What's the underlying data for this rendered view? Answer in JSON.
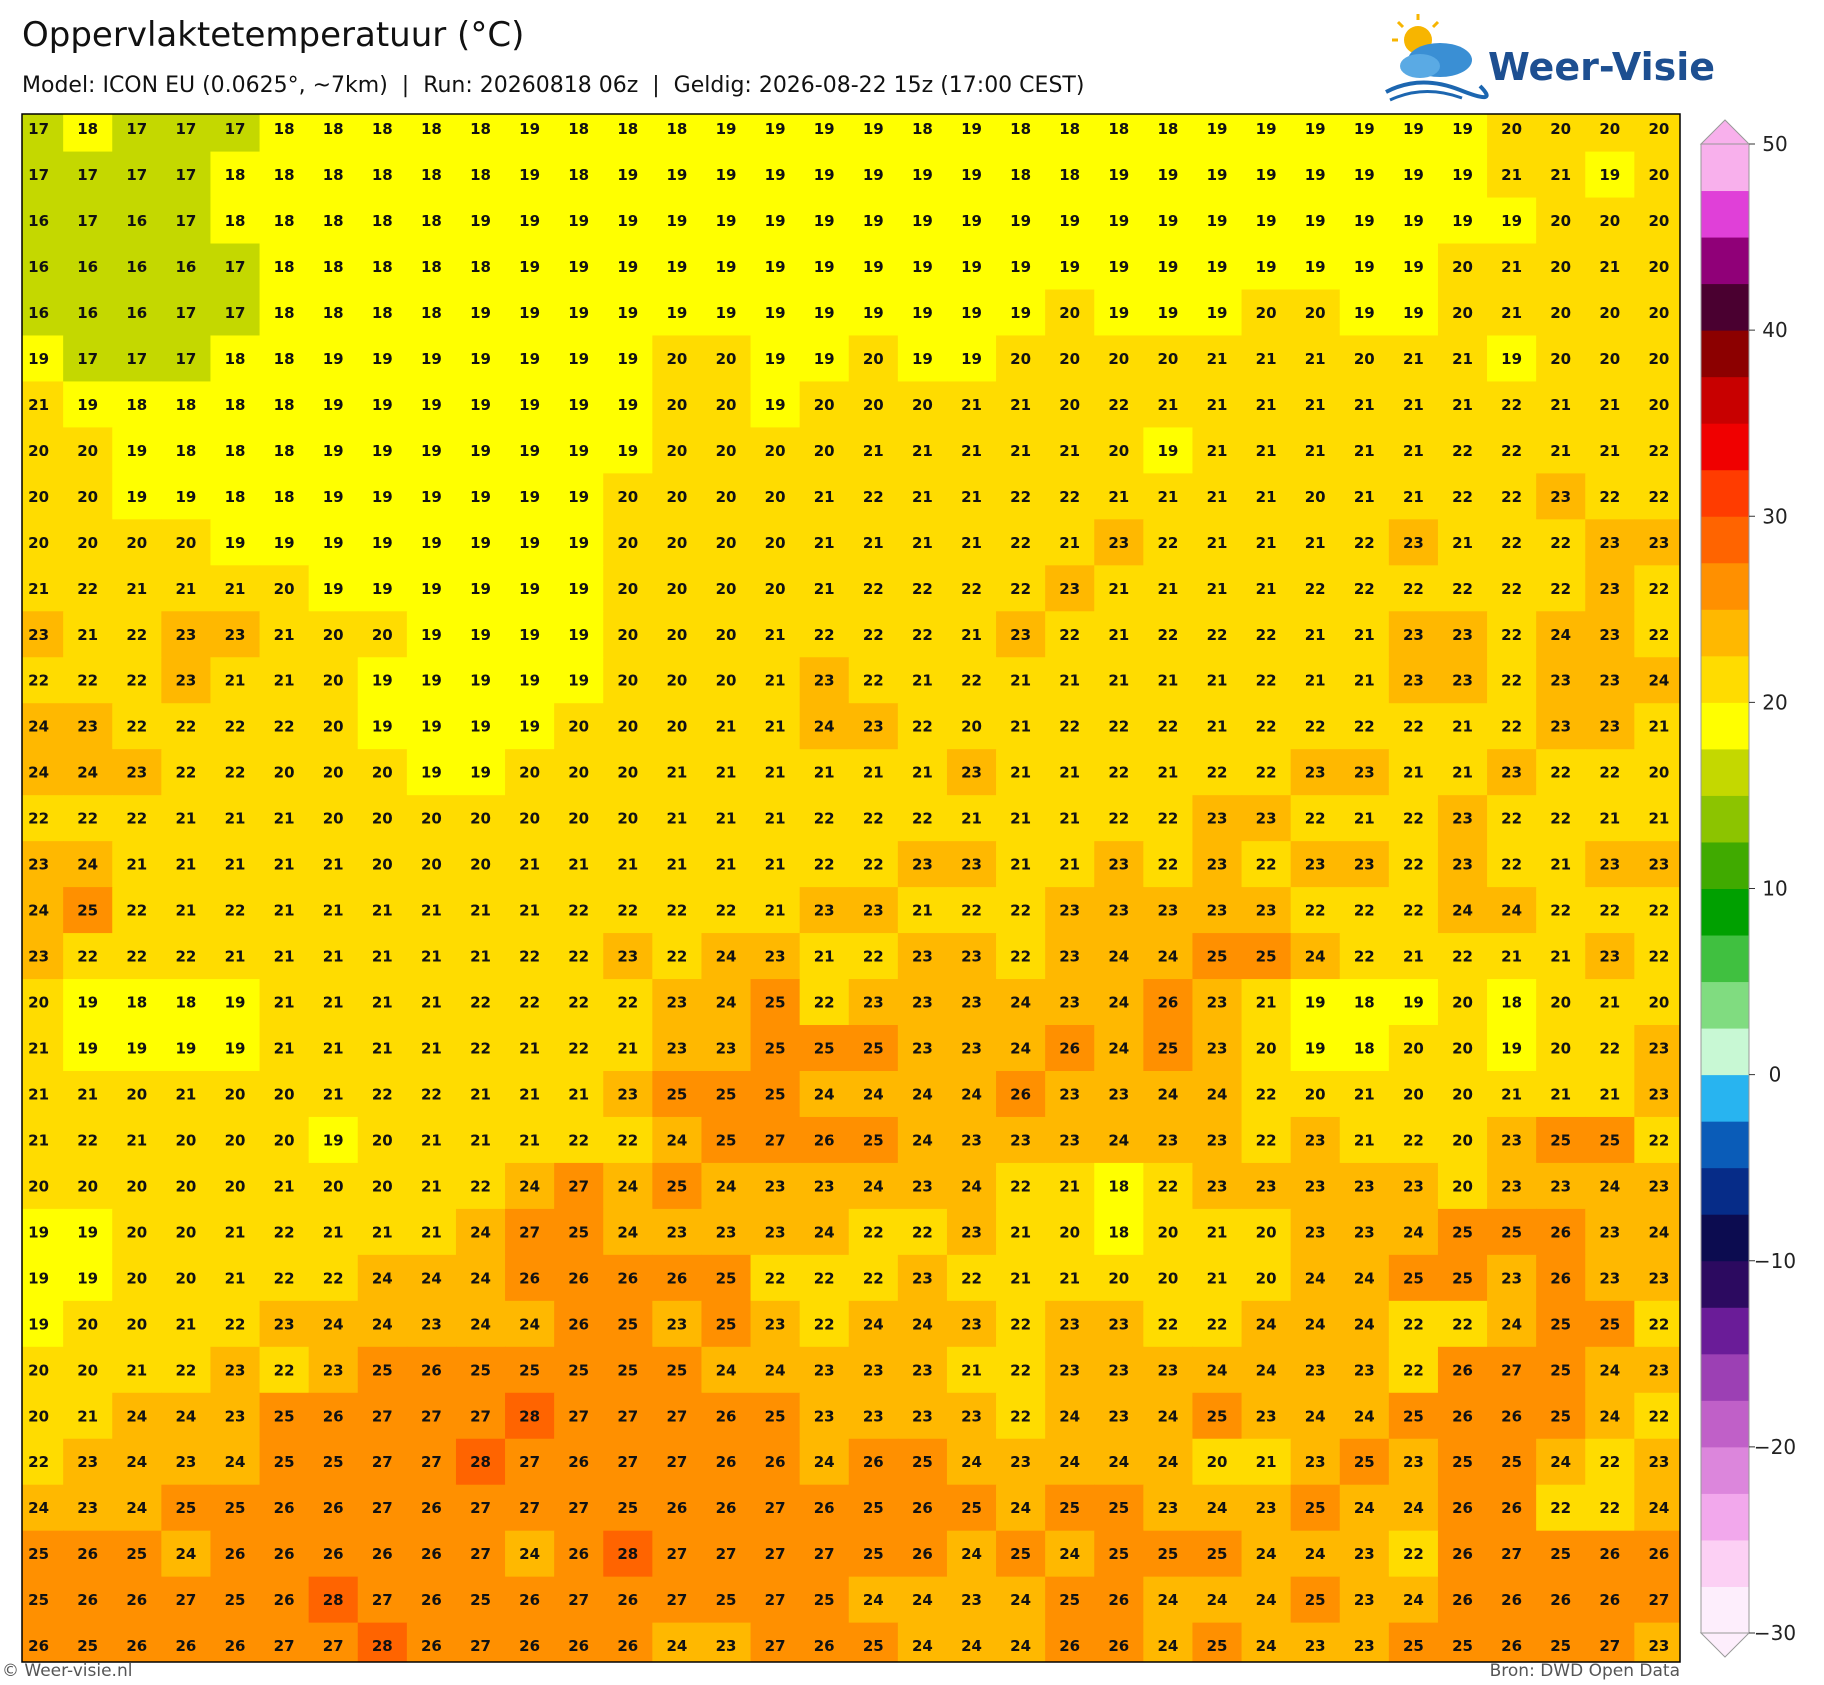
{
  "header": {
    "title": "Oppervlaktetemperatuur (°C)",
    "subtitle": "Model: ICON EU (0.0625°, ~7km)  |  Run: 20260818 06z  |  Geldig: 2026-08-22 15z (17:00 CEST)"
  },
  "logo": "Weer-Visie",
  "map": {
    "values": [
      [
        17,
        18,
        17,
        17,
        17,
        18,
        18,
        18,
        18,
        18,
        19,
        18,
        18,
        18,
        19,
        19,
        19,
        19,
        18,
        19,
        18,
        18,
        18,
        18,
        19,
        19,
        19,
        19,
        19,
        19,
        20,
        20,
        20,
        20
      ],
      [
        17,
        17,
        17,
        17,
        18,
        18,
        18,
        18,
        18,
        18,
        19,
        18,
        19,
        19,
        19,
        19,
        19,
        19,
        19,
        19,
        18,
        18,
        19,
        19,
        19,
        19,
        19,
        19,
        19,
        19,
        21,
        21,
        19,
        20
      ],
      [
        16,
        17,
        16,
        17,
        18,
        18,
        18,
        18,
        18,
        19,
        19,
        19,
        19,
        19,
        19,
        19,
        19,
        19,
        19,
        19,
        19,
        19,
        19,
        19,
        19,
        19,
        19,
        19,
        19,
        19,
        19,
        20,
        20,
        20
      ],
      [
        16,
        16,
        16,
        16,
        17,
        18,
        18,
        18,
        18,
        18,
        19,
        19,
        19,
        19,
        19,
        19,
        19,
        19,
        19,
        19,
        19,
        19,
        19,
        19,
        19,
        19,
        19,
        19,
        19,
        20,
        21,
        20,
        21,
        20
      ],
      [
        16,
        16,
        16,
        17,
        17,
        18,
        18,
        18,
        18,
        19,
        19,
        19,
        19,
        19,
        19,
        19,
        19,
        19,
        19,
        19,
        19,
        20,
        19,
        19,
        19,
        20,
        20,
        19,
        19,
        20,
        21,
        20,
        20,
        20
      ],
      [
        19,
        17,
        17,
        17,
        18,
        18,
        19,
        19,
        19,
        19,
        19,
        19,
        19,
        20,
        20,
        19,
        19,
        20,
        19,
        19,
        20,
        20,
        20,
        20,
        21,
        21,
        21,
        20,
        21,
        21,
        19,
        20,
        20,
        20
      ],
      [
        21,
        19,
        18,
        18,
        18,
        18,
        19,
        19,
        19,
        19,
        19,
        19,
        19,
        20,
        20,
        19,
        20,
        20,
        20,
        21,
        21,
        20,
        22,
        21,
        21,
        21,
        21,
        21,
        21,
        21,
        22,
        21,
        21,
        20
      ],
      [
        20,
        20,
        19,
        18,
        18,
        18,
        19,
        19,
        19,
        19,
        19,
        19,
        19,
        20,
        20,
        20,
        20,
        21,
        21,
        21,
        21,
        21,
        20,
        19,
        21,
        21,
        21,
        21,
        21,
        22,
        22,
        21,
        21,
        22
      ],
      [
        20,
        20,
        19,
        19,
        18,
        18,
        19,
        19,
        19,
        19,
        19,
        19,
        20,
        20,
        20,
        20,
        21,
        22,
        21,
        21,
        22,
        22,
        21,
        21,
        21,
        21,
        20,
        21,
        21,
        22,
        22,
        23,
        22,
        22
      ],
      [
        20,
        20,
        20,
        20,
        19,
        19,
        19,
        19,
        19,
        19,
        19,
        19,
        20,
        20,
        20,
        20,
        21,
        21,
        21,
        21,
        22,
        21,
        23,
        22,
        21,
        21,
        21,
        22,
        23,
        21,
        22,
        22,
        23,
        23
      ],
      [
        21,
        22,
        21,
        21,
        21,
        20,
        19,
        19,
        19,
        19,
        19,
        19,
        20,
        20,
        20,
        20,
        21,
        22,
        22,
        22,
        22,
        23,
        21,
        21,
        21,
        21,
        22,
        22,
        22,
        22,
        22,
        22,
        23,
        22
      ],
      [
        23,
        21,
        22,
        23,
        23,
        21,
        20,
        20,
        19,
        19,
        19,
        19,
        20,
        20,
        20,
        21,
        22,
        22,
        22,
        21,
        23,
        22,
        21,
        22,
        22,
        22,
        21,
        21,
        23,
        23,
        22,
        24,
        23,
        22
      ],
      [
        22,
        22,
        22,
        23,
        21,
        21,
        20,
        19,
        19,
        19,
        19,
        19,
        20,
        20,
        20,
        21,
        23,
        22,
        21,
        22,
        21,
        21,
        21,
        21,
        21,
        22,
        21,
        21,
        23,
        23,
        22,
        23,
        23,
        24
      ],
      [
        24,
        23,
        22,
        22,
        22,
        22,
        20,
        19,
        19,
        19,
        19,
        20,
        20,
        20,
        21,
        21,
        24,
        23,
        22,
        20,
        21,
        22,
        22,
        22,
        21,
        22,
        22,
        22,
        22,
        21,
        22,
        23,
        23,
        21
      ],
      [
        24,
        24,
        23,
        22,
        22,
        20,
        20,
        20,
        19,
        19,
        20,
        20,
        20,
        21,
        21,
        21,
        21,
        21,
        21,
        23,
        21,
        21,
        22,
        21,
        22,
        22,
        23,
        23,
        21,
        21,
        23,
        22,
        22,
        20
      ],
      [
        22,
        22,
        22,
        21,
        21,
        21,
        20,
        20,
        20,
        20,
        20,
        20,
        20,
        21,
        21,
        21,
        22,
        22,
        22,
        21,
        21,
        21,
        22,
        22,
        23,
        23,
        22,
        21,
        22,
        23,
        22,
        22,
        21,
        21
      ],
      [
        23,
        24,
        21,
        21,
        21,
        21,
        21,
        20,
        20,
        20,
        21,
        21,
        21,
        21,
        21,
        21,
        22,
        22,
        23,
        23,
        21,
        21,
        23,
        22,
        23,
        22,
        23,
        23,
        22,
        23,
        22,
        21,
        23,
        23
      ],
      [
        24,
        25,
        22,
        21,
        22,
        21,
        21,
        21,
        21,
        21,
        21,
        22,
        22,
        22,
        22,
        21,
        23,
        23,
        21,
        22,
        22,
        23,
        23,
        23,
        23,
        23,
        22,
        22,
        22,
        24,
        24,
        22,
        22,
        22
      ],
      [
        23,
        22,
        22,
        22,
        21,
        21,
        21,
        21,
        21,
        21,
        22,
        22,
        23,
        22,
        24,
        23,
        21,
        22,
        23,
        23,
        22,
        23,
        24,
        24,
        25,
        25,
        24,
        22,
        21,
        22,
        21,
        21,
        23,
        22
      ],
      [
        20,
        19,
        18,
        18,
        19,
        21,
        21,
        21,
        21,
        22,
        22,
        22,
        22,
        23,
        24,
        25,
        22,
        23,
        23,
        23,
        24,
        23,
        24,
        26,
        23,
        21,
        19,
        18,
        19,
        20,
        18,
        20,
        21,
        20
      ],
      [
        21,
        19,
        19,
        19,
        19,
        21,
        21,
        21,
        21,
        22,
        21,
        22,
        21,
        23,
        23,
        25,
        25,
        25,
        23,
        23,
        24,
        26,
        24,
        25,
        23,
        20,
        19,
        18,
        20,
        20,
        19,
        20,
        22,
        23
      ],
      [
        21,
        21,
        20,
        21,
        20,
        20,
        21,
        22,
        22,
        21,
        21,
        21,
        23,
        25,
        25,
        25,
        24,
        24,
        24,
        24,
        26,
        23,
        23,
        24,
        24,
        22,
        20,
        21,
        20,
        20,
        21,
        21,
        21,
        23
      ],
      [
        21,
        22,
        21,
        20,
        20,
        20,
        19,
        20,
        21,
        21,
        21,
        22,
        22,
        24,
        25,
        27,
        26,
        25,
        24,
        23,
        23,
        23,
        24,
        23,
        23,
        22,
        23,
        21,
        22,
        20,
        23,
        25,
        25,
        22
      ],
      [
        20,
        20,
        20,
        20,
        20,
        21,
        20,
        20,
        21,
        22,
        24,
        27,
        24,
        25,
        24,
        23,
        23,
        24,
        23,
        24,
        22,
        21,
        18,
        22,
        23,
        23,
        23,
        23,
        23,
        20,
        23,
        23,
        24,
        23
      ],
      [
        19,
        19,
        20,
        20,
        21,
        22,
        21,
        21,
        21,
        24,
        27,
        25,
        24,
        23,
        23,
        23,
        24,
        22,
        22,
        23,
        21,
        20,
        18,
        20,
        21,
        20,
        23,
        23,
        24,
        25,
        25,
        26,
        23,
        24
      ],
      [
        19,
        19,
        20,
        20,
        21,
        22,
        22,
        24,
        24,
        24,
        26,
        26,
        26,
        26,
        25,
        22,
        22,
        22,
        23,
        22,
        21,
        21,
        20,
        20,
        21,
        20,
        24,
        24,
        25,
        25,
        23,
        26,
        23,
        23
      ],
      [
        19,
        20,
        20,
        21,
        22,
        23,
        24,
        24,
        23,
        24,
        24,
        26,
        25,
        23,
        25,
        23,
        22,
        24,
        24,
        23,
        22,
        23,
        23,
        22,
        22,
        24,
        24,
        24,
        22,
        22,
        24,
        25,
        25,
        22
      ],
      [
        20,
        20,
        21,
        22,
        23,
        22,
        23,
        25,
        26,
        25,
        25,
        25,
        25,
        25,
        24,
        24,
        23,
        23,
        23,
        21,
        22,
        23,
        23,
        23,
        24,
        24,
        23,
        23,
        22,
        26,
        27,
        25,
        24,
        23
      ],
      [
        20,
        21,
        24,
        24,
        23,
        25,
        26,
        27,
        27,
        27,
        28,
        27,
        27,
        27,
        26,
        25,
        23,
        23,
        23,
        23,
        22,
        24,
        23,
        24,
        25,
        23,
        24,
        24,
        25,
        26,
        26,
        25,
        24,
        22
      ],
      [
        22,
        23,
        24,
        23,
        24,
        25,
        25,
        27,
        27,
        28,
        27,
        26,
        27,
        27,
        26,
        26,
        24,
        26,
        25,
        24,
        23,
        24,
        24,
        24,
        20,
        21,
        23,
        25,
        23,
        25,
        25,
        24,
        22,
        23
      ],
      [
        24,
        23,
        24,
        25,
        25,
        26,
        26,
        27,
        26,
        27,
        27,
        27,
        25,
        26,
        26,
        27,
        26,
        25,
        26,
        25,
        24,
        25,
        25,
        23,
        24,
        23,
        25,
        24,
        24,
        26,
        26,
        22,
        22,
        24
      ],
      [
        25,
        26,
        25,
        24,
        26,
        26,
        26,
        26,
        26,
        27,
        24,
        26,
        28,
        27,
        27,
        27,
        27,
        25,
        26,
        24,
        25,
        24,
        25,
        25,
        25,
        24,
        24,
        23,
        22,
        26,
        27,
        25,
        26,
        26
      ],
      [
        25,
        26,
        26,
        27,
        25,
        26,
        28,
        27,
        26,
        25,
        26,
        27,
        26,
        27,
        25,
        27,
        25,
        24,
        24,
        23,
        24,
        25,
        26,
        24,
        24,
        24,
        25,
        23,
        24,
        26,
        26,
        26,
        26,
        27
      ],
      [
        26,
        25,
        26,
        26,
        26,
        27,
        27,
        28,
        26,
        27,
        26,
        26,
        26,
        24,
        23,
        27,
        26,
        25,
        24,
        24,
        24,
        26,
        26,
        24,
        25,
        24,
        23,
        23,
        25,
        25,
        26,
        25,
        27,
        23
      ]
    ]
  },
  "colorbar": {
    "lim": [
      -30,
      50
    ],
    "ticks": [
      {
        "value": -30,
        "label": "−30"
      },
      {
        "value": -20,
        "label": "−20"
      },
      {
        "value": -10,
        "label": "−10"
      },
      0,
      10,
      20,
      30,
      40,
      50
    ],
    "colors": [
      "#fdeefc",
      "#fcd0f4",
      "#f2a8ec",
      "#dc86dc",
      "#c060c8",
      "#9c40b4",
      "#6a1c98",
      "#2c0a60",
      "#0c0c50",
      "#062c88",
      "#0a5cb8",
      "#28b4f0",
      "#c8f8d4",
      "#80dc80",
      "#40c040",
      "#00a000",
      "#40aa00",
      "#8cc400",
      "#c4d800",
      "#ffff00",
      "#ffdc00",
      "#ffb800",
      "#ff9000",
      "#ff6400",
      "#ff3c00",
      "#f00000",
      "#c80000",
      "#8c0000",
      "#4a0030",
      "#900078",
      "#e040d8",
      "#f8b0ec"
    ]
  },
  "footer": {
    "left": "© Weer-visie.nl",
    "right": "Bron: DWD Open Data"
  }
}
